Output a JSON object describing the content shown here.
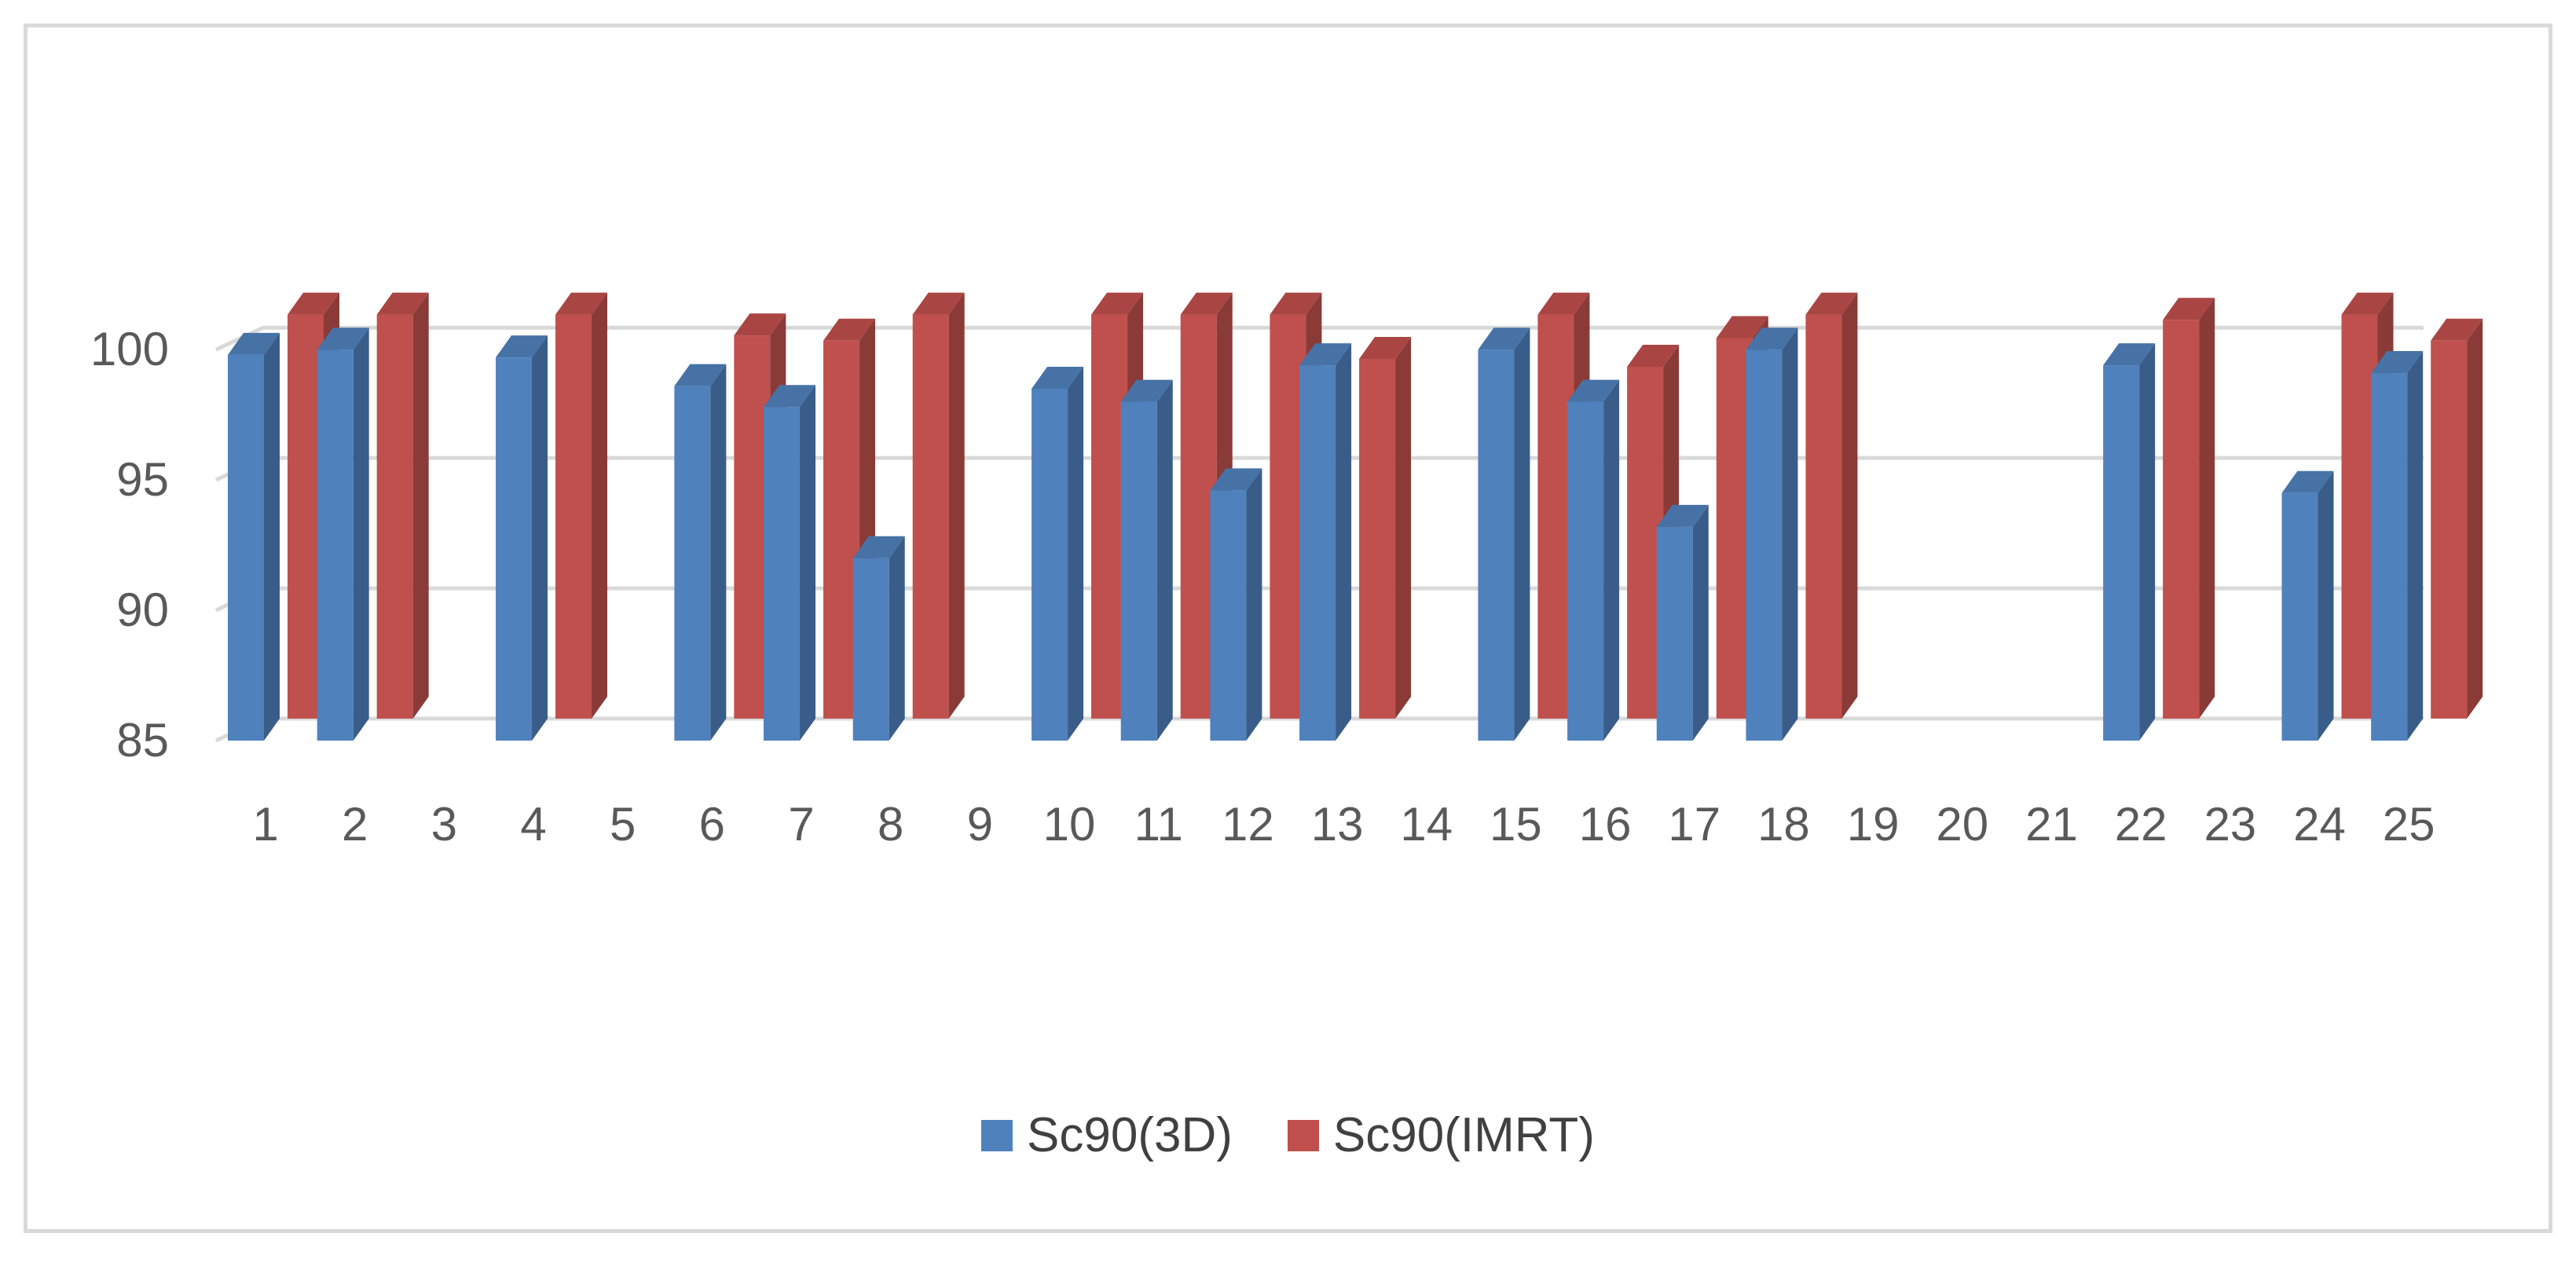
{
  "chart_data": {
    "type": "bar",
    "title": "",
    "xlabel": "",
    "ylabel": "",
    "ylim": [
      85,
      101
    ],
    "yticks": [
      85,
      90,
      95,
      100
    ],
    "grid": true,
    "legend_position": "bottom",
    "style": "3d-clustered-column",
    "categories": [
      "1",
      "2",
      "3",
      "4",
      "5",
      "6",
      "7",
      "8",
      "9",
      "10",
      "11",
      "12",
      "13",
      "14",
      "15",
      "16",
      "17",
      "18",
      "19",
      "20",
      "21",
      "22",
      "23",
      "24",
      "25"
    ],
    "series": [
      {
        "name": "Sc90(3D)",
        "color": "#4f81bd",
        "values": [
          99.8,
          100.0,
          null,
          99.7,
          null,
          98.6,
          97.8,
          92.0,
          null,
          98.5,
          98.0,
          94.6,
          99.4,
          null,
          100.0,
          98.0,
          93.2,
          100.0,
          null,
          null,
          null,
          99.4,
          null,
          94.5,
          99.1
        ]
      },
      {
        "name": "Sc90(IMRT)",
        "color": "#c0504d",
        "values": [
          100.5,
          100.5,
          null,
          100.5,
          null,
          99.7,
          99.5,
          100.5,
          null,
          100.5,
          100.5,
          100.5,
          98.8,
          null,
          100.5,
          98.5,
          99.6,
          100.5,
          null,
          null,
          null,
          100.3,
          null,
          100.5,
          99.5
        ]
      }
    ]
  }
}
